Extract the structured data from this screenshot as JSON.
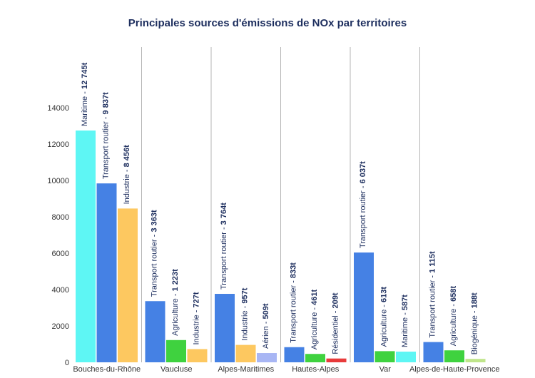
{
  "chart_data": {
    "type": "bar",
    "title": "Principales sources d'émissions de NOx par territoires",
    "xlabel": "",
    "ylabel": "",
    "ylim": [
      0,
      16000
    ],
    "yticks": [
      0,
      2000,
      4000,
      6000,
      8000,
      10000,
      12000,
      14000
    ],
    "grid": false,
    "unit": "t",
    "groups": [
      {
        "name": "Bouches-du-Rhône",
        "bars": [
          {
            "source": "Maritime",
            "value": 12745,
            "value_label": "12 745t",
            "color": "#5ef6f4"
          },
          {
            "source": "Transport routier",
            "value": 9837,
            "value_label": "9 837t",
            "color": "#4581e4"
          },
          {
            "source": "Industrie",
            "value": 8456,
            "value_label": "8 456t",
            "color": "#fdc860"
          }
        ]
      },
      {
        "name": "Vaucluse",
        "bars": [
          {
            "source": "Transport routier",
            "value": 3363,
            "value_label": "3 363t",
            "color": "#4581e4"
          },
          {
            "source": "Agriculture",
            "value": 1223,
            "value_label": "1 223t",
            "color": "#3fd23f"
          },
          {
            "source": "Industrie",
            "value": 727,
            "value_label": "727t",
            "color": "#fdc860"
          }
        ]
      },
      {
        "name": "Alpes-Maritimes",
        "bars": [
          {
            "source": "Transport routier",
            "value": 3764,
            "value_label": "3 764t",
            "color": "#4581e4"
          },
          {
            "source": "Industrie",
            "value": 957,
            "value_label": "957t",
            "color": "#fdc860"
          },
          {
            "source": "Aérien",
            "value": 509,
            "value_label": "509t",
            "color": "#a8b6f4"
          }
        ]
      },
      {
        "name": "Hautes-Alpes",
        "bars": [
          {
            "source": "Transport routier",
            "value": 833,
            "value_label": "833t",
            "color": "#4581e4"
          },
          {
            "source": "Agriculture",
            "value": 461,
            "value_label": "461t",
            "color": "#3fd23f"
          },
          {
            "source": "Résidentiel",
            "value": 209,
            "value_label": "209t",
            "color": "#e83b3b"
          }
        ]
      },
      {
        "name": "Var",
        "bars": [
          {
            "source": "Transport routier",
            "value": 6037,
            "value_label": "6 037t",
            "color": "#4581e4"
          },
          {
            "source": "Agriculture",
            "value": 613,
            "value_label": "613t",
            "color": "#3fd23f"
          },
          {
            "source": "Maritime",
            "value": 587,
            "value_label": "587t",
            "color": "#5ef6f4"
          }
        ]
      },
      {
        "name": "Alpes-de-Haute-Provence",
        "bars": [
          {
            "source": "Transport routier",
            "value": 1115,
            "value_label": "1 115t",
            "color": "#4581e4"
          },
          {
            "source": "Agriculture",
            "value": 658,
            "value_label": "658t",
            "color": "#3fd23f"
          },
          {
            "source": "Biogénique",
            "value": 188,
            "value_label": "188t",
            "color": "#bfe58a"
          }
        ]
      }
    ]
  }
}
